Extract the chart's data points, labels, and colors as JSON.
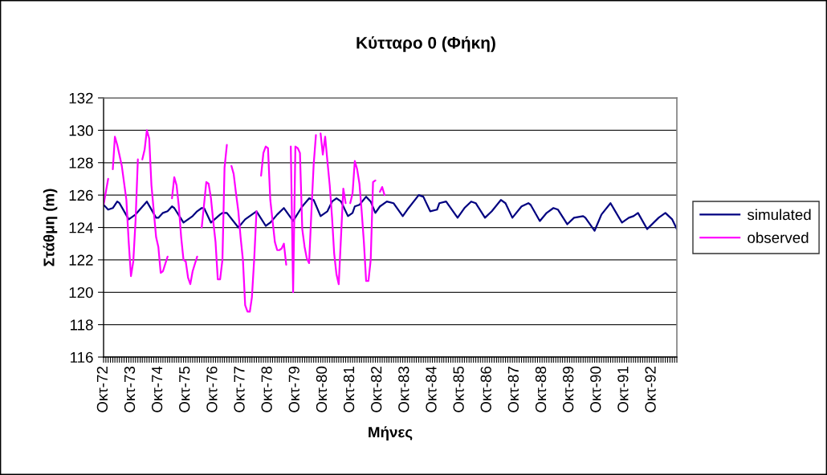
{
  "chart_data": {
    "type": "line",
    "title": "Κύτταρο 0 (Φήκη)",
    "xlabel": "Μήνες",
    "ylabel": "Στάθμη (m)",
    "xlim": [
      "1972-10",
      "1993-09"
    ],
    "xticks": [
      {
        "value": "1972-10",
        "label": "Οκτ-72"
      },
      {
        "value": "1973-10",
        "label": "Οκτ-73"
      },
      {
        "value": "1974-10",
        "label": "Οκτ-74"
      },
      {
        "value": "1975-10",
        "label": "Οκτ-75"
      },
      {
        "value": "1976-10",
        "label": "Οκτ-76"
      },
      {
        "value": "1977-10",
        "label": "Οκτ-77"
      },
      {
        "value": "1978-10",
        "label": "Οκτ-78"
      },
      {
        "value": "1979-10",
        "label": "Οκτ-79"
      },
      {
        "value": "1980-10",
        "label": "Οκτ-80"
      },
      {
        "value": "1981-10",
        "label": "Οκτ-81"
      },
      {
        "value": "1982-10",
        "label": "Οκτ-82"
      },
      {
        "value": "1983-10",
        "label": "Οκτ-83"
      },
      {
        "value": "1984-10",
        "label": "Οκτ-84"
      },
      {
        "value": "1985-10",
        "label": "Οκτ-85"
      },
      {
        "value": "1986-10",
        "label": "Οκτ-86"
      },
      {
        "value": "1987-10",
        "label": "Οκτ-87"
      },
      {
        "value": "1988-10",
        "label": "Οκτ-88"
      },
      {
        "value": "1989-10",
        "label": "Οκτ-89"
      },
      {
        "value": "1990-10",
        "label": "Οκτ-90"
      },
      {
        "value": "1991-10",
        "label": "Οκτ-91"
      },
      {
        "value": "1992-10",
        "label": "Οκτ-92"
      }
    ],
    "ylim": [
      116,
      132
    ],
    "yticks": [
      116,
      118,
      120,
      122,
      124,
      126,
      128,
      130,
      132
    ],
    "grid": "y",
    "legend": "right",
    "series": [
      {
        "name": "simulated",
        "color": "#000080",
        "x": [
          "1972-10",
          "1972-12",
          "1973-02",
          "1973-04",
          "1973-05",
          "1973-09",
          "1973-12",
          "1974-05",
          "1974-09",
          "1974-10",
          "1974-12",
          "1975-02",
          "1975-04",
          "1975-05",
          "1975-09",
          "1976-01",
          "1976-03",
          "1976-05",
          "1976-06",
          "1976-09",
          "1977-01",
          "1977-02",
          "1977-04",
          "1977-09",
          "1977-12",
          "1978-05",
          "1978-09",
          "1978-11",
          "1979-02",
          "1979-05",
          "1979-09",
          "1980-01",
          "1980-04",
          "1980-06",
          "1980-09",
          "1980-12",
          "1981-02",
          "1981-04",
          "1981-06",
          "1981-09",
          "1981-11",
          "1981-12",
          "1982-02",
          "1982-05",
          "1982-07",
          "1982-09",
          "1982-11",
          "1983-02",
          "1983-05",
          "1983-09",
          "1983-11",
          "1984-04",
          "1984-06",
          "1984-09",
          "1984-12",
          "1985-01",
          "1985-04",
          "1985-09",
          "1985-12",
          "1986-03",
          "1986-05",
          "1986-09",
          "1986-12",
          "1987-04",
          "1987-06",
          "1987-09",
          "1988-01",
          "1988-04",
          "1988-05",
          "1988-09",
          "1988-12",
          "1989-03",
          "1989-05",
          "1989-09",
          "1989-12",
          "1990-04",
          "1990-05",
          "1990-09",
          "1990-12",
          "1991-04",
          "1991-09",
          "1991-12",
          "1992-02",
          "1992-04",
          "1992-08",
          "1993-01",
          "1993-04",
          "1993-07",
          "1993-09"
        ],
        "values": [
          125.4,
          125.1,
          125.2,
          125.6,
          125.5,
          124.5,
          124.8,
          125.6,
          124.6,
          124.6,
          124.9,
          125.0,
          125.3,
          125.2,
          124.3,
          124.7,
          125.0,
          125.2,
          125.2,
          124.3,
          124.8,
          124.9,
          124.9,
          124.0,
          124.5,
          125.0,
          124.1,
          124.3,
          124.8,
          125.2,
          124.4,
          125.3,
          125.8,
          125.7,
          124.7,
          125.0,
          125.6,
          125.8,
          125.6,
          124.7,
          124.9,
          125.3,
          125.4,
          125.9,
          125.6,
          124.9,
          125.3,
          125.6,
          125.5,
          124.7,
          125.1,
          126.0,
          125.9,
          125.0,
          125.1,
          125.5,
          125.6,
          124.6,
          125.2,
          125.6,
          125.5,
          124.6,
          125.0,
          125.7,
          125.5,
          124.6,
          125.3,
          125.5,
          125.4,
          124.4,
          124.9,
          125.2,
          125.1,
          124.2,
          124.6,
          124.7,
          124.6,
          123.8,
          124.8,
          125.5,
          124.3,
          124.6,
          124.7,
          124.9,
          123.9,
          124.6,
          124.9,
          124.5,
          123.9
        ]
      },
      {
        "name": "observed",
        "color": "#ff00ff",
        "x": [
          "1972-10",
          "1972-12",
          "1973-01",
          "1973-02",
          "1973-03",
          "1973-04",
          "1973-06",
          "1973-08",
          "1973-09",
          "1973-10",
          "1973-11",
          "1973-12",
          "1974-01",
          "1974-02",
          "1974-03",
          "1974-04",
          "1974-05",
          "1974-06",
          "1974-07",
          "1974-09",
          "1974-10",
          "1974-11",
          "1974-12",
          "1975-02",
          "1975-03",
          "1975-04",
          "1975-05",
          "1975-06",
          "1975-07",
          "1975-08",
          "1975-09",
          "1975-10",
          "1975-11",
          "1975-12",
          "1976-01",
          "1976-03",
          "1976-04",
          "1976-05",
          "1976-07",
          "1976-08",
          "1976-09",
          "1976-10",
          "1976-11",
          "1976-12",
          "1977-01",
          "1977-02",
          "1977-03",
          "1977-04",
          "1977-05",
          "1977-06",
          "1977-07",
          "1977-08",
          "1977-09",
          "1977-10",
          "1977-11",
          "1977-12",
          "1978-01",
          "1978-02",
          "1978-03",
          "1978-04",
          "1978-05",
          "1978-06",
          "1978-07",
          "1978-08",
          "1978-09",
          "1978-10",
          "1978-11",
          "1979-01",
          "1979-02",
          "1979-03",
          "1979-04",
          "1979-05",
          "1979-06",
          "1979-07",
          "1979-08",
          "1979-09",
          "1979-10",
          "1979-11",
          "1979-12",
          "1980-01",
          "1980-02",
          "1980-03",
          "1980-04",
          "1980-05",
          "1980-06",
          "1980-07",
          "1980-08",
          "1980-09",
          "1980-10",
          "1980-11",
          "1980-12",
          "1981-01",
          "1981-02",
          "1981-03",
          "1981-04",
          "1981-05",
          "1981-07",
          "1981-08",
          "1981-09",
          "1981-10",
          "1981-11",
          "1981-12",
          "1982-01",
          "1982-02",
          "1982-03",
          "1982-04",
          "1982-05",
          "1982-06",
          "1982-07",
          "1982-08",
          "1982-09",
          "1982-10",
          "1982-11",
          "1982-12",
          "1983-01"
        ],
        "values": [
          125.4,
          127.0,
          null,
          127.6,
          129.6,
          129.1,
          127.8,
          125.7,
          123.1,
          121.0,
          121.9,
          124.4,
          128.2,
          null,
          128.2,
          128.8,
          130.0,
          129.5,
          126.6,
          123.4,
          122.8,
          121.2,
          121.3,
          122.2,
          null,
          125.8,
          127.1,
          126.6,
          125.3,
          123.4,
          122.0,
          121.9,
          120.9,
          120.5,
          121.3,
          122.2,
          null,
          124.0,
          126.8,
          126.7,
          125.8,
          124.4,
          123.1,
          120.8,
          120.8,
          122.0,
          127.7,
          129.1,
          null,
          127.8,
          127.3,
          126.1,
          125.0,
          123.4,
          122.0,
          119.2,
          118.8,
          118.8,
          119.7,
          122.1,
          125.0,
          null,
          127.2,
          128.6,
          129.0,
          128.9,
          125.7,
          123.1,
          122.6,
          122.6,
          122.7,
          123.0,
          121.7,
          null,
          129.0,
          120.0,
          129.0,
          128.9,
          128.6,
          123.9,
          122.8,
          122.1,
          121.8,
          124.9,
          127.9,
          129.7,
          null,
          129.8,
          128.5,
          129.6,
          128.1,
          126.6,
          124.6,
          122.4,
          121.1,
          120.5,
          126.4,
          125.5,
          null,
          125.5,
          126.1,
          128.1,
          127.6,
          126.7,
          125.1,
          123.1,
          120.7,
          120.7,
          122.0,
          126.8,
          126.9,
          null,
          126.2,
          126.5,
          126.0
        ]
      }
    ]
  }
}
